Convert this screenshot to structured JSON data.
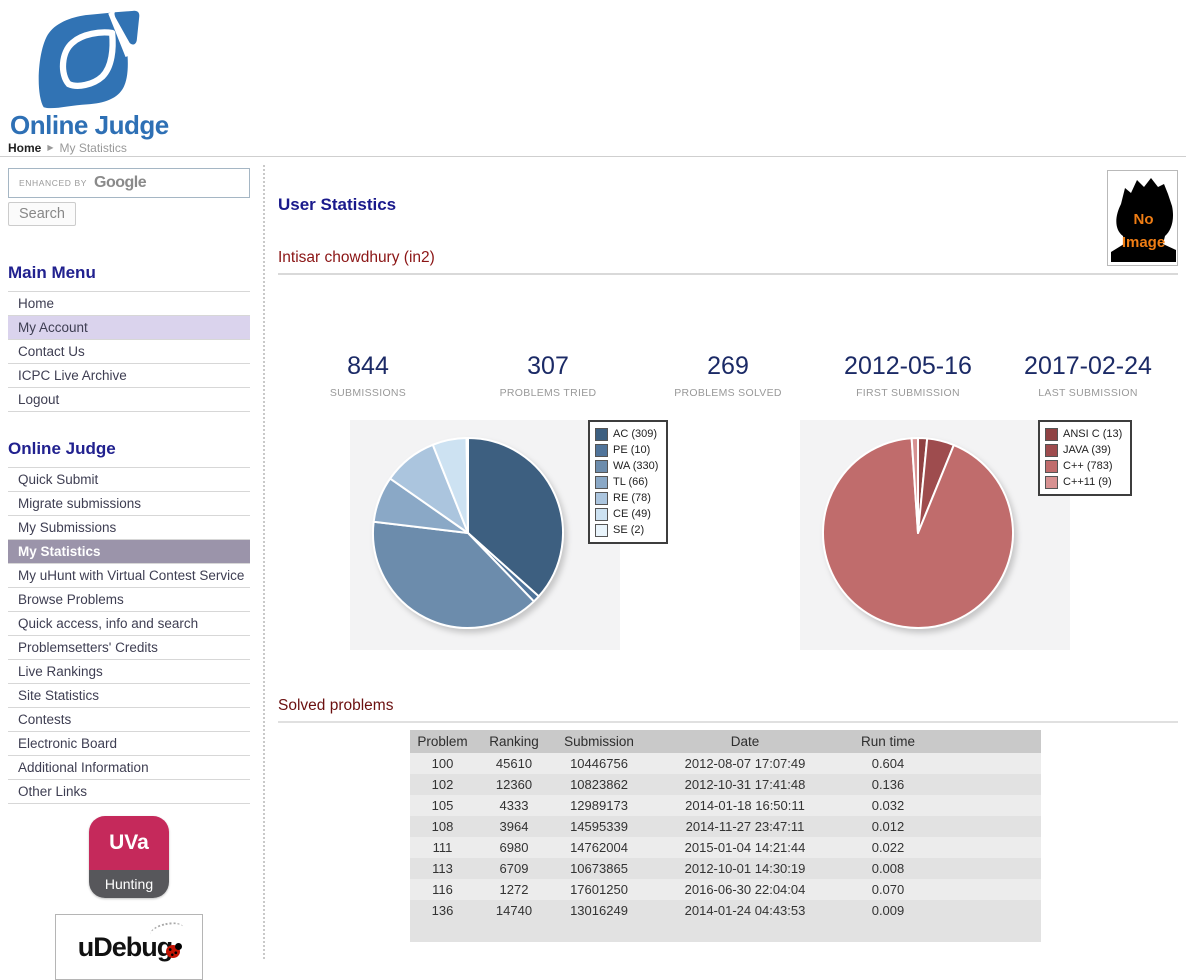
{
  "brand": {
    "logo_text": "Online Judge",
    "brand_color": "#2e70b5"
  },
  "breadcrumb": {
    "home": "Home",
    "current": "My Statistics",
    "arrow_icon": "▶"
  },
  "sidebar": {
    "search": {
      "branding_small": "ENHANCED BY",
      "branding_logo": "Google",
      "button_label": "Search"
    },
    "sections": {
      "main_menu": {
        "title": "Main Menu",
        "items": [
          {
            "label": "Home"
          },
          {
            "label": "My Account",
            "cls": "sel-light"
          },
          {
            "label": "Contact Us"
          },
          {
            "label": "ICPC Live Archive"
          },
          {
            "label": "Logout"
          }
        ]
      },
      "online_judge": {
        "title": "Online Judge",
        "items": [
          {
            "label": "Quick Submit"
          },
          {
            "label": "Migrate submissions"
          },
          {
            "label": "My Submissions"
          },
          {
            "label": "My Statistics",
            "cls": "sel-dark"
          },
          {
            "label": "My uHunt with Virtual Contest Service"
          },
          {
            "label": "Browse Problems"
          },
          {
            "label": "Quick access, info and search"
          },
          {
            "label": "Problemsetters' Credits"
          },
          {
            "label": "Live Rankings"
          },
          {
            "label": "Site Statistics"
          },
          {
            "label": "Contests"
          },
          {
            "label": "Electronic Board"
          },
          {
            "label": "Additional Information"
          },
          {
            "label": "Other Links"
          }
        ]
      }
    },
    "badges": {
      "uva_top": "UVa",
      "uva_bottom": "Hunting",
      "uva_color": "#c5295b",
      "udebug_label": "uDebug"
    }
  },
  "main": {
    "title": "User Statistics",
    "user_heading": "Intisar chowdhury (in2)",
    "avatar": {
      "line1": "No",
      "line2": "Image",
      "text_color": "#ef7d14"
    },
    "stats": [
      {
        "value": "844",
        "label": "SUBMISSIONS"
      },
      {
        "value": "307",
        "label": "PROBLEMS TRIED"
      },
      {
        "value": "269",
        "label": "PROBLEMS SOLVED"
      },
      {
        "value": "2012-05-16",
        "label": "FIRST SUBMISSION"
      },
      {
        "value": "2017-02-24",
        "label": "LAST SUBMISSION"
      }
    ],
    "solved_heading": "Solved problems",
    "table": {
      "columns": [
        "Problem",
        "Ranking",
        "Submission",
        "Date",
        "Run time"
      ],
      "rows": [
        {
          "problem": "100",
          "ranking": "45610",
          "submission": "10446756",
          "date": "2012-08-07 17:07:49",
          "runtime": "0.604"
        },
        {
          "problem": "102",
          "ranking": "12360",
          "submission": "10823862",
          "date": "2012-10-31 17:41:48",
          "runtime": "0.136"
        },
        {
          "problem": "105",
          "ranking": "4333",
          "submission": "12989173",
          "date": "2014-01-18 16:50:11",
          "runtime": "0.032"
        },
        {
          "problem": "108",
          "ranking": "3964",
          "submission": "14595339",
          "date": "2014-11-27 23:47:11",
          "runtime": "0.012"
        },
        {
          "problem": "111",
          "ranking": "6980",
          "submission": "14762004",
          "date": "2015-01-04 14:21:44",
          "runtime": "0.022"
        },
        {
          "problem": "113",
          "ranking": "6709",
          "submission": "10673865",
          "date": "2012-10-01 14:30:19",
          "runtime": "0.008"
        },
        {
          "problem": "116",
          "ranking": "1272",
          "submission": "17601250",
          "date": "2016-06-30 22:04:04",
          "runtime": "0.070"
        },
        {
          "problem": "136",
          "ranking": "14740",
          "submission": "13016249",
          "date": "2014-01-24 04:43:53",
          "runtime": "0.009"
        }
      ]
    }
  },
  "chart_data": [
    {
      "type": "pie",
      "title": "",
      "legend_position": "right",
      "total": 844,
      "series": [
        {
          "name": "AC",
          "value": 309,
          "color": "#3d5f80"
        },
        {
          "name": "PE",
          "value": 10,
          "color": "#50749a"
        },
        {
          "name": "WA",
          "value": 330,
          "color": "#6c8cac"
        },
        {
          "name": "TL",
          "value": 66,
          "color": "#8aa8c6"
        },
        {
          "name": "RE",
          "value": 78,
          "color": "#abc5de"
        },
        {
          "name": "CE",
          "value": 49,
          "color": "#cde2f2"
        },
        {
          "name": "SE",
          "value": 2,
          "color": "#e9f4fb"
        }
      ]
    },
    {
      "type": "pie",
      "title": "",
      "legend_position": "right",
      "total": 844,
      "series": [
        {
          "name": "ANSI C",
          "value": 13,
          "color": "#8f4243"
        },
        {
          "name": "JAVA",
          "value": 39,
          "color": "#9e4c4e"
        },
        {
          "name": "C++",
          "value": 783,
          "color": "#c06c6c"
        },
        {
          "name": "C++11",
          "value": 9,
          "color": "#d79191"
        }
      ]
    }
  ]
}
